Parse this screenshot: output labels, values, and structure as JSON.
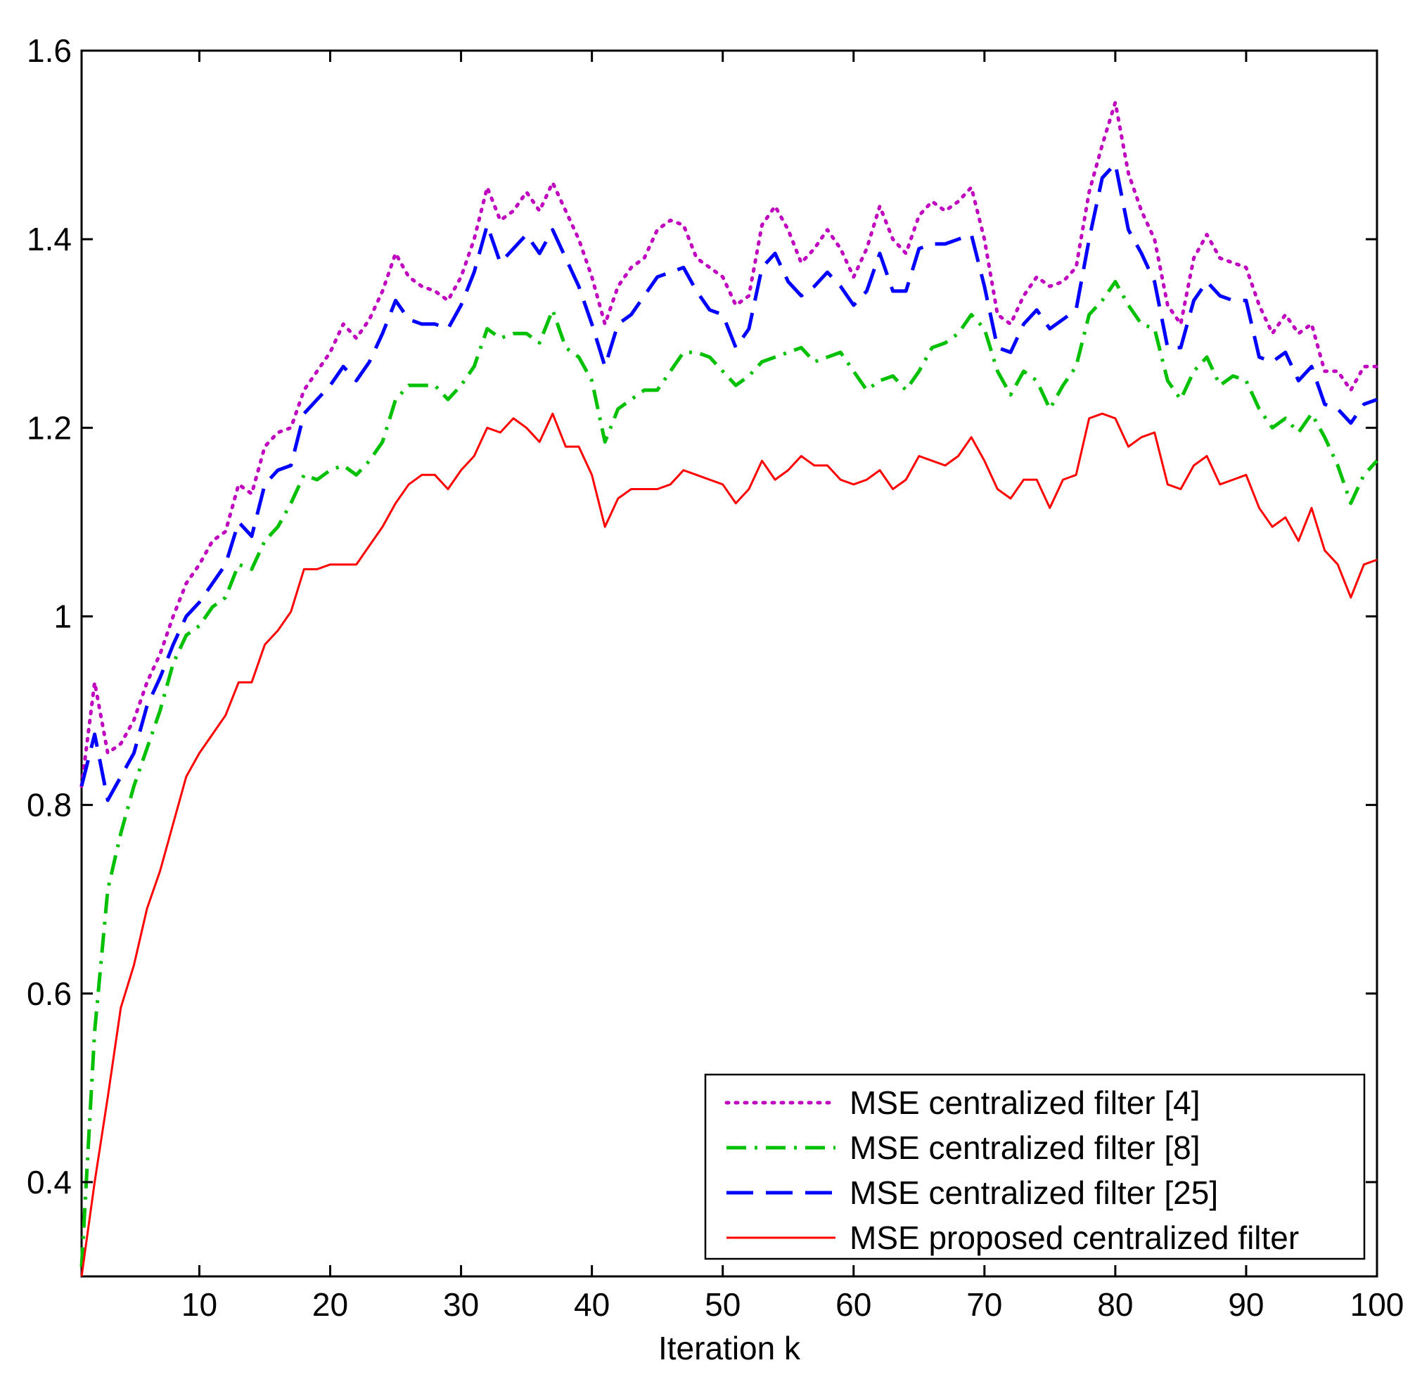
{
  "chart_data": {
    "type": "line",
    "title": "",
    "xlabel": "Iteration k",
    "ylabel": "",
    "xlim": [
      1,
      100
    ],
    "ylim": [
      0.3,
      1.6
    ],
    "xticks": [
      10,
      20,
      30,
      40,
      50,
      60,
      70,
      80,
      90,
      100
    ],
    "xtick_labels": [
      "10",
      "20",
      "30",
      "40",
      "50",
      "60",
      "70",
      "80",
      "90",
      "100"
    ],
    "yticks": [
      0.4,
      0.6,
      0.8,
      1.0,
      1.2,
      1.4,
      1.6
    ],
    "ytick_labels": [
      "0.4",
      "0.6",
      "0.8",
      "1",
      "1.2",
      "1.4",
      "1.6"
    ],
    "grid": false,
    "legend_position": "bottom-right",
    "x": [
      1,
      2,
      3,
      4,
      5,
      6,
      7,
      8,
      9,
      10,
      11,
      12,
      13,
      14,
      15,
      16,
      17,
      18,
      19,
      20,
      21,
      22,
      23,
      24,
      25,
      26,
      27,
      28,
      29,
      30,
      31,
      32,
      33,
      34,
      35,
      36,
      37,
      38,
      39,
      40,
      41,
      42,
      43,
      44,
      45,
      46,
      47,
      48,
      49,
      50,
      51,
      52,
      53,
      54,
      55,
      56,
      57,
      58,
      59,
      60,
      61,
      62,
      63,
      64,
      65,
      66,
      67,
      68,
      69,
      70,
      71,
      72,
      73,
      74,
      75,
      76,
      77,
      78,
      79,
      80,
      81,
      82,
      83,
      84,
      85,
      86,
      87,
      88,
      89,
      90,
      91,
      92,
      93,
      94,
      95,
      96,
      97,
      98,
      99,
      100
    ],
    "series": [
      {
        "name": "MSE centralized filter [4]",
        "color": "#bf00bf",
        "style": "dotted",
        "values": [
          0.82,
          0.93,
          0.855,
          0.865,
          0.89,
          0.93,
          0.96,
          1.0,
          1.035,
          1.055,
          1.08,
          1.09,
          1.14,
          1.13,
          1.18,
          1.195,
          1.2,
          1.24,
          1.26,
          1.28,
          1.31,
          1.295,
          1.315,
          1.345,
          1.385,
          1.36,
          1.35,
          1.345,
          1.335,
          1.36,
          1.4,
          1.455,
          1.42,
          1.43,
          1.45,
          1.43,
          1.46,
          1.43,
          1.4,
          1.36,
          1.31,
          1.35,
          1.37,
          1.38,
          1.41,
          1.42,
          1.415,
          1.38,
          1.37,
          1.36,
          1.33,
          1.34,
          1.415,
          1.435,
          1.41,
          1.375,
          1.39,
          1.41,
          1.39,
          1.36,
          1.39,
          1.435,
          1.4,
          1.385,
          1.425,
          1.44,
          1.43,
          1.44,
          1.455,
          1.4,
          1.32,
          1.31,
          1.34,
          1.36,
          1.35,
          1.355,
          1.37,
          1.45,
          1.5,
          1.545,
          1.47,
          1.43,
          1.4,
          1.33,
          1.31,
          1.38,
          1.405,
          1.38,
          1.375,
          1.37,
          1.33,
          1.3,
          1.32,
          1.3,
          1.31,
          1.26,
          1.26,
          1.24,
          1.265,
          1.265
        ]
      },
      {
        "name": "MSE centralized filter [8]",
        "color": "#00c000",
        "style": "dashdot",
        "values": [
          0.31,
          0.56,
          0.71,
          0.77,
          0.82,
          0.86,
          0.9,
          0.95,
          0.98,
          0.99,
          1.01,
          1.02,
          1.055,
          1.05,
          1.08,
          1.095,
          1.12,
          1.15,
          1.145,
          1.155,
          1.16,
          1.15,
          1.165,
          1.185,
          1.23,
          1.245,
          1.245,
          1.245,
          1.23,
          1.245,
          1.265,
          1.305,
          1.295,
          1.3,
          1.3,
          1.29,
          1.325,
          1.285,
          1.275,
          1.25,
          1.185,
          1.22,
          1.23,
          1.24,
          1.24,
          1.26,
          1.28,
          1.28,
          1.275,
          1.26,
          1.245,
          1.255,
          1.27,
          1.275,
          1.28,
          1.285,
          1.27,
          1.275,
          1.28,
          1.26,
          1.24,
          1.25,
          1.255,
          1.24,
          1.26,
          1.285,
          1.29,
          1.3,
          1.32,
          1.305,
          1.26,
          1.235,
          1.26,
          1.25,
          1.22,
          1.245,
          1.265,
          1.32,
          1.335,
          1.355,
          1.33,
          1.31,
          1.305,
          1.25,
          1.23,
          1.26,
          1.275,
          1.245,
          1.255,
          1.25,
          1.22,
          1.2,
          1.21,
          1.195,
          1.215,
          1.19,
          1.16,
          1.12,
          1.15,
          1.165
        ]
      },
      {
        "name": "MSE centralized filter [25]",
        "color": "#0000ff",
        "style": "dashed",
        "values": [
          0.82,
          0.875,
          0.805,
          0.83,
          0.855,
          0.905,
          0.935,
          0.97,
          1.0,
          1.015,
          1.035,
          1.055,
          1.1,
          1.085,
          1.14,
          1.155,
          1.16,
          1.215,
          1.23,
          1.245,
          1.265,
          1.25,
          1.27,
          1.3,
          1.335,
          1.315,
          1.31,
          1.31,
          1.305,
          1.33,
          1.365,
          1.415,
          1.375,
          1.39,
          1.405,
          1.385,
          1.41,
          1.38,
          1.35,
          1.31,
          1.265,
          1.31,
          1.32,
          1.34,
          1.36,
          1.365,
          1.37,
          1.345,
          1.325,
          1.32,
          1.285,
          1.305,
          1.37,
          1.385,
          1.355,
          1.34,
          1.35,
          1.365,
          1.35,
          1.33,
          1.345,
          1.385,
          1.345,
          1.345,
          1.39,
          1.395,
          1.395,
          1.4,
          1.405,
          1.35,
          1.285,
          1.28,
          1.31,
          1.325,
          1.305,
          1.315,
          1.325,
          1.4,
          1.465,
          1.48,
          1.41,
          1.385,
          1.355,
          1.285,
          1.285,
          1.335,
          1.355,
          1.34,
          1.335,
          1.335,
          1.275,
          1.27,
          1.28,
          1.25,
          1.265,
          1.225,
          1.22,
          1.205,
          1.225,
          1.23
        ]
      },
      {
        "name": "MSE proposed centralized filter",
        "color": "#ff0000",
        "style": "solid",
        "values": [
          0.3,
          0.4,
          0.49,
          0.585,
          0.63,
          0.69,
          0.73,
          0.78,
          0.83,
          0.855,
          0.875,
          0.895,
          0.93,
          0.93,
          0.97,
          0.985,
          1.005,
          1.05,
          1.05,
          1.055,
          1.055,
          1.055,
          1.075,
          1.095,
          1.12,
          1.14,
          1.15,
          1.15,
          1.135,
          1.155,
          1.17,
          1.2,
          1.195,
          1.21,
          1.2,
          1.185,
          1.215,
          1.18,
          1.18,
          1.15,
          1.095,
          1.125,
          1.135,
          1.135,
          1.135,
          1.14,
          1.155,
          1.15,
          1.145,
          1.14,
          1.12,
          1.135,
          1.165,
          1.145,
          1.155,
          1.17,
          1.16,
          1.16,
          1.145,
          1.14,
          1.145,
          1.155,
          1.135,
          1.145,
          1.17,
          1.165,
          1.16,
          1.17,
          1.19,
          1.165,
          1.135,
          1.125,
          1.145,
          1.145,
          1.115,
          1.145,
          1.15,
          1.21,
          1.215,
          1.21,
          1.18,
          1.19,
          1.195,
          1.14,
          1.135,
          1.16,
          1.17,
          1.14,
          1.145,
          1.15,
          1.115,
          1.095,
          1.105,
          1.08,
          1.115,
          1.07,
          1.055,
          1.02,
          1.055,
          1.06
        ]
      }
    ]
  }
}
